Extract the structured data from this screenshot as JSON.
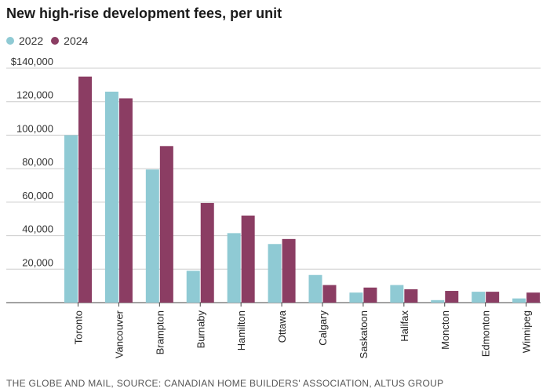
{
  "title": "New high-rise development fees, per unit",
  "source": "THE GLOBE AND MAIL, SOURCE: CANADIAN HOME BUILDERS' ASSOCIATION, ALTUS GROUP",
  "chart_data": {
    "type": "bar",
    "title": "New high-rise development fees, per unit",
    "xlabel": "",
    "ylabel": "",
    "ylim": [
      0,
      140000
    ],
    "yticks": [
      20000,
      40000,
      60000,
      80000,
      100000,
      120000,
      140000
    ],
    "ytick_labels": [
      "20,000",
      "40,000",
      "60,000",
      "80,000",
      "100,000",
      "120,000",
      "$140,000"
    ],
    "grid": true,
    "legend_position": "top-left",
    "categories": [
      "Toronto",
      "Vancouver",
      "Brampton",
      "Burnaby",
      "Hamilton",
      "Ottawa",
      "Calgary",
      "Saskatoon",
      "Halifax",
      "Moncton",
      "Edmonton",
      "Winnipeg"
    ],
    "series": [
      {
        "name": "2022",
        "color": "#8fcad4",
        "values": [
          100000,
          126000,
          79500,
          19000,
          41500,
          35000,
          16500,
          6000,
          10500,
          1500,
          6500,
          2500
        ]
      },
      {
        "name": "2024",
        "color": "#8b3d63",
        "values": [
          135000,
          122000,
          93500,
          59500,
          52000,
          38000,
          10500,
          9000,
          8000,
          7000,
          6500,
          6000
        ]
      }
    ]
  }
}
